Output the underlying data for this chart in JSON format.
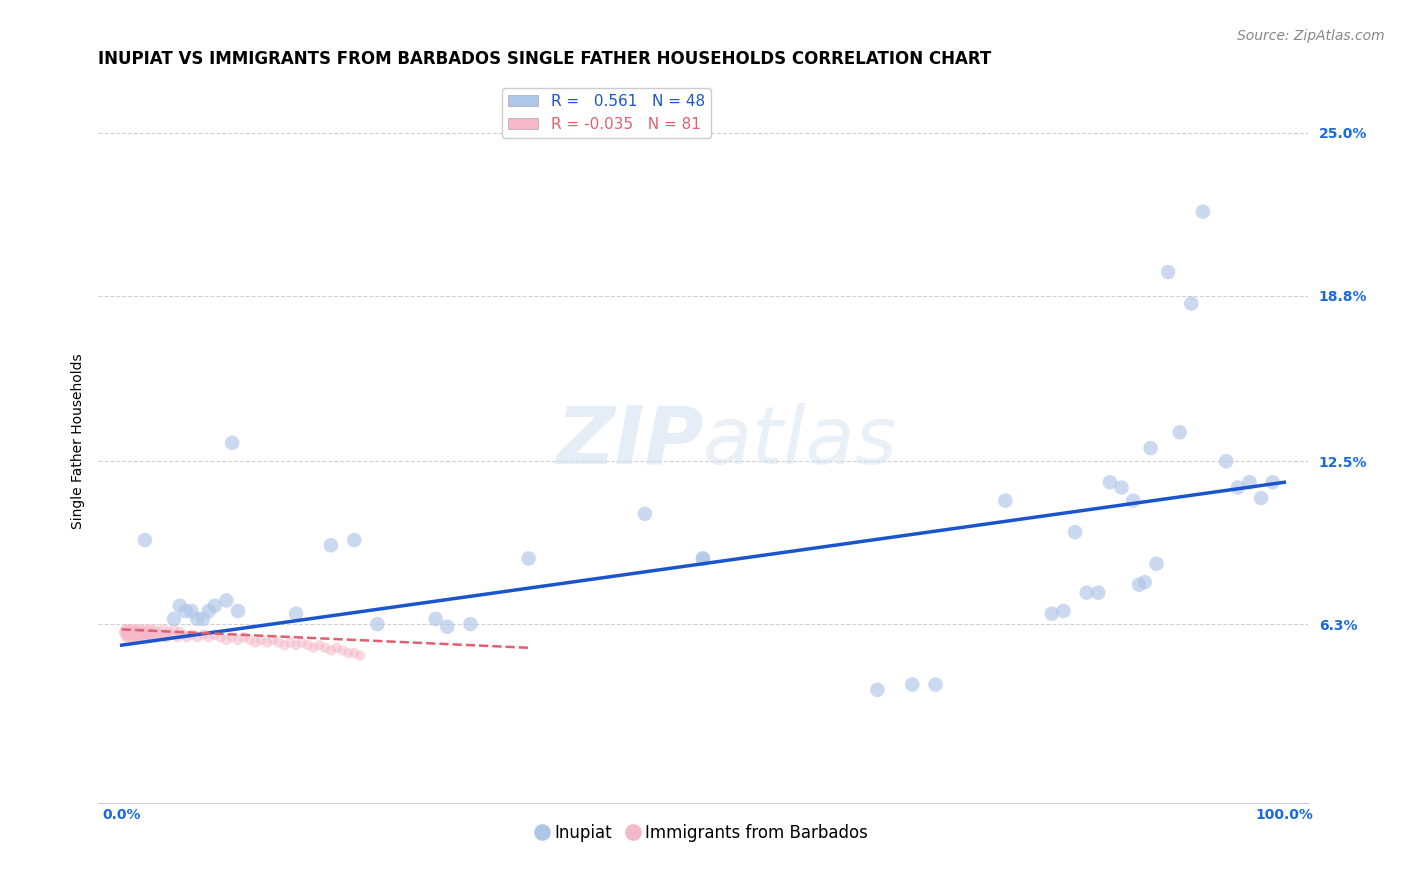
{
  "title": "INUPIAT VS IMMIGRANTS FROM BARBADOS SINGLE FATHER HOUSEHOLDS CORRELATION CHART",
  "source": "Source: ZipAtlas.com",
  "ylabel_label": "Single Father Households",
  "legend_1_label": "R =   0.561   N = 48",
  "legend_2_label": "R = -0.035   N = 81",
  "inupiat_color": "#aec6e8",
  "barbados_color": "#f5b8c8",
  "trendline_inupiat_color": "#1a55cc",
  "trendline_barbados_color": "#e06070",
  "background_color": "#ffffff",
  "grid_color": "#cccccc",
  "watermark_zip": "ZIP",
  "watermark_atlas": "atlas",
  "inupiat_x": [
    0.02,
    0.045,
    0.05,
    0.055,
    0.06,
    0.065,
    0.07,
    0.075,
    0.08,
    0.09,
    0.095,
    0.1,
    0.15,
    0.18,
    0.2,
    0.22,
    0.27,
    0.28,
    0.3,
    0.35,
    0.45,
    0.5,
    0.5,
    0.65,
    0.68,
    0.7,
    0.76,
    0.8,
    0.81,
    0.82,
    0.83,
    0.84,
    0.85,
    0.86,
    0.87,
    0.875,
    0.88,
    0.885,
    0.89,
    0.9,
    0.91,
    0.92,
    0.93,
    0.95,
    0.96,
    0.97,
    0.98,
    0.99
  ],
  "inupiat_y": [
    0.095,
    0.065,
    0.07,
    0.068,
    0.068,
    0.065,
    0.065,
    0.068,
    0.07,
    0.072,
    0.132,
    0.068,
    0.067,
    0.093,
    0.095,
    0.063,
    0.065,
    0.062,
    0.063,
    0.088,
    0.105,
    0.088,
    0.088,
    0.038,
    0.04,
    0.04,
    0.11,
    0.067,
    0.068,
    0.098,
    0.075,
    0.075,
    0.117,
    0.115,
    0.11,
    0.078,
    0.079,
    0.13,
    0.086,
    0.197,
    0.136,
    0.185,
    0.22,
    0.125,
    0.115,
    0.117,
    0.111,
    0.117
  ],
  "barbados_x": [
    0.002,
    0.003,
    0.003,
    0.004,
    0.004,
    0.005,
    0.005,
    0.006,
    0.006,
    0.007,
    0.007,
    0.008,
    0.008,
    0.009,
    0.009,
    0.01,
    0.01,
    0.011,
    0.011,
    0.012,
    0.012,
    0.013,
    0.013,
    0.014,
    0.015,
    0.015,
    0.016,
    0.017,
    0.018,
    0.019,
    0.02,
    0.021,
    0.022,
    0.023,
    0.024,
    0.025,
    0.026,
    0.027,
    0.028,
    0.03,
    0.032,
    0.034,
    0.036,
    0.038,
    0.04,
    0.042,
    0.045,
    0.048,
    0.05,
    0.053,
    0.056,
    0.06,
    0.065,
    0.07,
    0.075,
    0.08,
    0.085,
    0.09,
    0.095,
    0.1,
    0.105,
    0.11,
    0.115,
    0.12,
    0.125,
    0.13,
    0.135,
    0.14,
    0.145,
    0.15,
    0.155,
    0.16,
    0.165,
    0.17,
    0.175,
    0.18,
    0.185,
    0.19,
    0.195,
    0.2,
    0.205
  ],
  "barbados_y": [
    0.06,
    0.059,
    0.061,
    0.058,
    0.06,
    0.059,
    0.061,
    0.058,
    0.06,
    0.059,
    0.061,
    0.058,
    0.06,
    0.059,
    0.061,
    0.058,
    0.06,
    0.059,
    0.061,
    0.058,
    0.06,
    0.059,
    0.061,
    0.058,
    0.06,
    0.059,
    0.061,
    0.058,
    0.06,
    0.059,
    0.061,
    0.058,
    0.06,
    0.059,
    0.061,
    0.058,
    0.06,
    0.059,
    0.061,
    0.058,
    0.06,
    0.059,
    0.061,
    0.058,
    0.06,
    0.059,
    0.061,
    0.058,
    0.06,
    0.059,
    0.058,
    0.059,
    0.058,
    0.059,
    0.058,
    0.059,
    0.058,
    0.057,
    0.058,
    0.057,
    0.058,
    0.057,
    0.056,
    0.057,
    0.056,
    0.057,
    0.056,
    0.055,
    0.056,
    0.055,
    0.056,
    0.055,
    0.054,
    0.055,
    0.054,
    0.053,
    0.054,
    0.053,
    0.052,
    0.052,
    0.051
  ],
  "xlim": [
    -0.02,
    1.02
  ],
  "ylim": [
    -0.005,
    0.27
  ],
  "xtick_positions": [
    0.0,
    1.0
  ],
  "xtick_labels": [
    "0.0%",
    "100.0%"
  ],
  "ytick_positions": [
    0.063,
    0.125,
    0.188,
    0.25
  ],
  "ytick_labels": [
    "6.3%",
    "12.5%",
    "18.8%",
    "25.0%"
  ],
  "title_fontsize": 12,
  "axis_label_fontsize": 10,
  "tick_fontsize": 10,
  "legend_fontsize": 11,
  "source_fontsize": 10,
  "scatter_size_inupiat": 110,
  "scatter_size_barbados": 55,
  "scatter_alpha_inupiat": 0.65,
  "scatter_alpha_barbados": 0.55,
  "inupiat_trend_x0": 0.0,
  "inupiat_trend_x1": 1.0,
  "inupiat_trend_y0": 0.055,
  "inupiat_trend_y1": 0.117,
  "barbados_trend_x0": 0.0,
  "barbados_trend_x1": 0.35,
  "barbados_trend_y0": 0.061,
  "barbados_trend_y1": 0.054
}
